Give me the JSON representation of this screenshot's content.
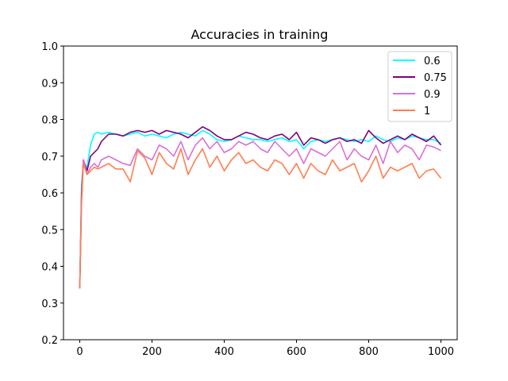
{
  "chart_data": {
    "type": "line",
    "title": "Accuracies in training",
    "xlabel": "",
    "ylabel": "",
    "xlim": [
      -45,
      1045
    ],
    "ylim": [
      0.2,
      1.0
    ],
    "x_ticks": [
      0,
      200,
      400,
      600,
      800,
      1000
    ],
    "y_ticks": [
      0.2,
      0.3,
      0.4,
      0.5,
      0.6,
      0.7,
      0.8,
      0.9,
      1.0
    ],
    "x_tick_labels": [
      "0",
      "200",
      "400",
      "600",
      "800",
      "1000"
    ],
    "y_tick_labels": [
      "0.2",
      "0.3",
      "0.4",
      "0.5",
      "0.6",
      "0.7",
      "0.8",
      "0.9",
      "1.0"
    ],
    "grid": false,
    "legend_position": "top-right",
    "series": [
      {
        "name": "0.6",
        "color": "#00ffff",
        "x": [
          0,
          5,
          10,
          20,
          30,
          40,
          50,
          60,
          80,
          100,
          120,
          140,
          160,
          180,
          200,
          220,
          240,
          260,
          280,
          300,
          320,
          340,
          360,
          380,
          400,
          420,
          440,
          460,
          480,
          500,
          520,
          540,
          560,
          580,
          600,
          620,
          640,
          660,
          680,
          700,
          720,
          740,
          760,
          780,
          800,
          820,
          840,
          860,
          880,
          900,
          920,
          940,
          960,
          980,
          1000
        ],
        "y": [
          0.34,
          0.62,
          0.68,
          0.67,
          0.73,
          0.76,
          0.765,
          0.76,
          0.765,
          0.76,
          0.755,
          0.76,
          0.765,
          0.755,
          0.76,
          0.755,
          0.75,
          0.76,
          0.765,
          0.76,
          0.755,
          0.77,
          0.76,
          0.745,
          0.74,
          0.745,
          0.755,
          0.75,
          0.745,
          0.745,
          0.74,
          0.745,
          0.75,
          0.74,
          0.745,
          0.72,
          0.74,
          0.745,
          0.74,
          0.745,
          0.75,
          0.745,
          0.74,
          0.745,
          0.74,
          0.755,
          0.745,
          0.74,
          0.75,
          0.745,
          0.755,
          0.75,
          0.745,
          0.745,
          0.735
        ]
      },
      {
        "name": "0.75",
        "color": "#800080",
        "x": [
          0,
          5,
          10,
          20,
          30,
          40,
          50,
          60,
          80,
          100,
          120,
          140,
          160,
          180,
          200,
          220,
          240,
          260,
          280,
          300,
          320,
          340,
          360,
          380,
          400,
          420,
          440,
          460,
          480,
          500,
          520,
          540,
          560,
          580,
          600,
          620,
          640,
          660,
          680,
          700,
          720,
          740,
          760,
          780,
          800,
          820,
          840,
          860,
          880,
          900,
          920,
          940,
          960,
          980,
          1000
        ],
        "y": [
          0.34,
          0.6,
          0.69,
          0.66,
          0.7,
          0.71,
          0.72,
          0.74,
          0.76,
          0.76,
          0.755,
          0.765,
          0.77,
          0.765,
          0.77,
          0.76,
          0.77,
          0.765,
          0.76,
          0.75,
          0.765,
          0.78,
          0.77,
          0.755,
          0.745,
          0.745,
          0.755,
          0.765,
          0.76,
          0.75,
          0.745,
          0.755,
          0.76,
          0.745,
          0.765,
          0.73,
          0.75,
          0.745,
          0.735,
          0.745,
          0.75,
          0.74,
          0.745,
          0.735,
          0.77,
          0.75,
          0.735,
          0.745,
          0.755,
          0.745,
          0.76,
          0.75,
          0.74,
          0.755,
          0.73
        ]
      },
      {
        "name": "0.9",
        "color": "#da70d6",
        "x": [
          0,
          5,
          10,
          20,
          30,
          40,
          50,
          60,
          80,
          100,
          120,
          140,
          160,
          180,
          200,
          220,
          240,
          260,
          280,
          300,
          320,
          340,
          360,
          380,
          400,
          420,
          440,
          460,
          480,
          500,
          520,
          540,
          560,
          580,
          600,
          620,
          640,
          660,
          680,
          700,
          720,
          740,
          760,
          780,
          800,
          820,
          840,
          860,
          880,
          900,
          920,
          940,
          960,
          980,
          1000
        ],
        "y": [
          0.34,
          0.58,
          0.69,
          0.65,
          0.67,
          0.68,
          0.67,
          0.69,
          0.7,
          0.69,
          0.68,
          0.675,
          0.72,
          0.7,
          0.69,
          0.73,
          0.72,
          0.7,
          0.74,
          0.69,
          0.73,
          0.75,
          0.72,
          0.74,
          0.71,
          0.72,
          0.74,
          0.73,
          0.74,
          0.72,
          0.71,
          0.74,
          0.72,
          0.7,
          0.72,
          0.68,
          0.72,
          0.71,
          0.7,
          0.72,
          0.74,
          0.69,
          0.72,
          0.7,
          0.69,
          0.73,
          0.68,
          0.74,
          0.71,
          0.73,
          0.72,
          0.69,
          0.73,
          0.725,
          0.715
        ]
      },
      {
        "name": "1",
        "color": "#ff7f50",
        "x": [
          0,
          5,
          10,
          20,
          30,
          40,
          50,
          60,
          80,
          100,
          120,
          140,
          160,
          180,
          200,
          220,
          240,
          260,
          280,
          300,
          320,
          340,
          360,
          380,
          400,
          420,
          440,
          460,
          480,
          500,
          520,
          540,
          560,
          580,
          600,
          620,
          640,
          660,
          680,
          700,
          720,
          740,
          760,
          780,
          800,
          820,
          840,
          860,
          880,
          900,
          920,
          940,
          960,
          980,
          1000
        ],
        "y": [
          0.34,
          0.57,
          0.68,
          0.65,
          0.66,
          0.67,
          0.665,
          0.67,
          0.68,
          0.665,
          0.665,
          0.63,
          0.715,
          0.695,
          0.65,
          0.71,
          0.68,
          0.665,
          0.72,
          0.65,
          0.69,
          0.72,
          0.67,
          0.7,
          0.66,
          0.69,
          0.71,
          0.68,
          0.69,
          0.67,
          0.66,
          0.69,
          0.68,
          0.65,
          0.68,
          0.64,
          0.68,
          0.66,
          0.65,
          0.69,
          0.66,
          0.67,
          0.68,
          0.63,
          0.66,
          0.7,
          0.64,
          0.67,
          0.66,
          0.67,
          0.68,
          0.64,
          0.66,
          0.665,
          0.64
        ]
      }
    ]
  }
}
